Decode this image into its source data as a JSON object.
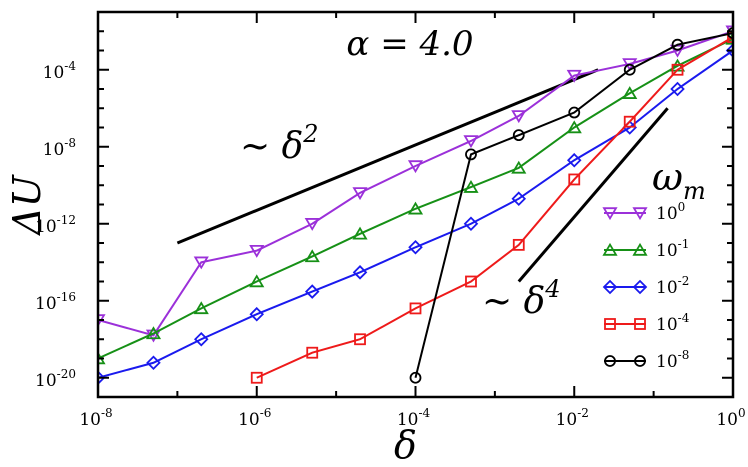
{
  "chart_data": {
    "type": "line",
    "title": "",
    "xlabel": "δ",
    "ylabel": "ΔU",
    "xscale": "log",
    "yscale": "log",
    "xlim": [
      1e-08,
      1
    ],
    "ylim": [
      1e-21,
      0.1
    ],
    "x_ticks": [
      {
        "exp": "-8",
        "value": 1e-08
      },
      {
        "exp": "-6",
        "value": 1e-06
      },
      {
        "exp": "-4",
        "value": 0.0001
      },
      {
        "exp": "-2",
        "value": 0.01
      },
      {
        "exp": "0",
        "value": 1
      }
    ],
    "y_ticks": [
      {
        "exp": "-20",
        "value": 1e-20
      },
      {
        "exp": "-16",
        "value": 1e-16
      },
      {
        "exp": "-12",
        "value": 1e-12
      },
      {
        "exp": "-8",
        "value": 1e-08
      },
      {
        "exp": "-4",
        "value": 0.0001
      }
    ],
    "tick_base": "10",
    "grid": false,
    "legend": {
      "title": "ω",
      "title_sub": "m",
      "placement": "right"
    },
    "annotations": {
      "alpha": "α = 4.0",
      "slope2_prefix": "~ δ",
      "slope2_exp": "2",
      "slope4_prefix": "~ δ",
      "slope4_exp": "4"
    },
    "reference_lines": [
      {
        "name": "slope2",
        "x": [
          1e-07,
          0.02
        ],
        "y": [
          1e-13,
          0.0001
        ]
      },
      {
        "name": "slope4",
        "x": [
          0.002,
          0.15
        ],
        "y": [
          1e-15,
          1e-06
        ]
      }
    ],
    "series": [
      {
        "name_base": "10",
        "name_exp": "0",
        "color": "#9b30d9",
        "marker": "triangle-down",
        "x": [
          1e-08,
          5e-08,
          2e-07,
          1e-06,
          5e-06,
          2e-05,
          0.0001,
          0.0005,
          0.002,
          0.01,
          0.05,
          0.2,
          1
        ],
        "y": [
          1e-17,
          1.6e-18,
          1e-14,
          4e-14,
          1e-12,
          4e-11,
          1e-09,
          2e-08,
          4e-07,
          5e-05,
          0.0002,
          0.001,
          0.01
        ]
      },
      {
        "name_base": "10",
        "name_exp": "-1",
        "color": "#169016",
        "marker": "triangle-up",
        "x": [
          1e-08,
          5e-08,
          2e-07,
          1e-06,
          5e-06,
          2e-05,
          0.0001,
          0.0005,
          0.002,
          0.01,
          0.05,
          0.2,
          1
        ],
        "y": [
          1e-19,
          2e-18,
          4e-17,
          1e-15,
          2e-14,
          3e-13,
          6e-12,
          8e-11,
          8e-10,
          1e-07,
          6e-06,
          0.00016,
          0.004
        ]
      },
      {
        "name_base": "10",
        "name_exp": "-2",
        "color": "#1a1aee",
        "marker": "diamond",
        "x": [
          1e-08,
          5e-08,
          2e-07,
          1e-06,
          5e-06,
          2e-05,
          0.0001,
          0.0005,
          0.002,
          0.01,
          0.05,
          0.2,
          1
        ],
        "y": [
          1e-20,
          6e-20,
          1e-18,
          2e-17,
          3e-16,
          3e-15,
          6e-14,
          1e-12,
          2e-11,
          2e-09,
          1e-07,
          1e-05,
          0.001
        ]
      },
      {
        "name_base": "10",
        "name_exp": "-4",
        "color": "#ee1a1a",
        "marker": "square",
        "x": [
          1e-06,
          5e-06,
          2e-05,
          0.0001,
          0.0005,
          0.002,
          0.01,
          0.05,
          0.2,
          1
        ],
        "y": [
          1e-20,
          2e-19,
          1e-18,
          4e-17,
          1e-15,
          8e-14,
          2e-10,
          2e-07,
          0.0001,
          0.005
        ]
      },
      {
        "name_base": "10",
        "name_exp": "-8",
        "color": "#000000",
        "marker": "circle",
        "x": [
          0.0001,
          0.0005,
          0.002,
          0.01,
          0.05,
          0.2,
          1
        ],
        "y": [
          1e-20,
          4e-09,
          4e-08,
          6e-07,
          0.0001,
          0.002,
          0.008
        ]
      }
    ]
  }
}
